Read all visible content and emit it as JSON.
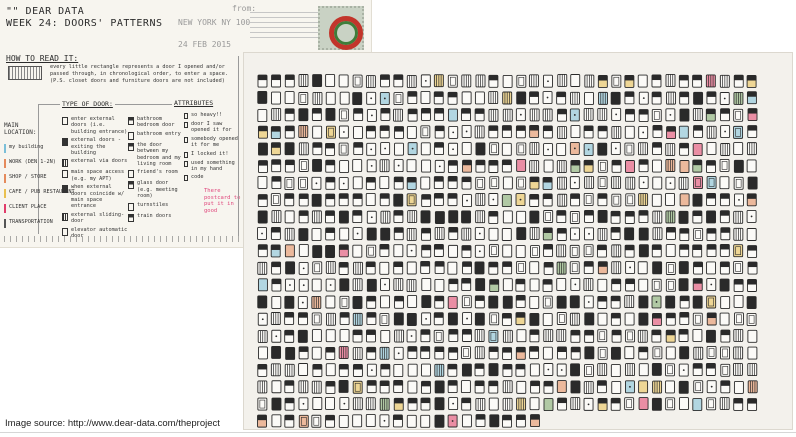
{
  "postcard": {
    "title_line1": "\"\" DEAR DATA",
    "title_line2": "WEEK 24: DOORS' PATTERNS",
    "from_label": "from:",
    "city": "NEW YORK NY 100",
    "date": "24 FEB 2015",
    "how_to_read": "HOW TO READ IT:",
    "intro_text": "every little rectangle represents a door I opened and/or passed through, in chronological order, to enter a space. (P.S. closet doors and furniture doors are not included)",
    "type_of_door": "TYPE OF DOOR:",
    "attributes": "ATTRIBUTES",
    "main_location": "MAIN LOCATION:",
    "locations": [
      {
        "label": "my building",
        "color": "#7bbfd8"
      },
      {
        "label": "WORK (DEN 1-2N)",
        "color": "#e58a5b"
      },
      {
        "label": "SHOP / STORE",
        "color": "#e58a5b"
      },
      {
        "label": "CAFE / PUB RESTAURANT",
        "color": "#e9c04f"
      },
      {
        "label": "CLIENT PLACE",
        "color": "#e13c6a"
      },
      {
        "label": "TRANSPORTATION",
        "color": "#555555"
      }
    ],
    "door_types": [
      "enter external doors (i.e. building entrance)",
      "external doors - exiting the building",
      "external via doors",
      "main space access (e.g. my APT)",
      "when external doors coincide w/ main space entrance",
      "external sliding-door",
      "elevator automatic door"
    ],
    "door_types_2": [
      "bathroom bedroom door",
      "bathroom entry",
      "the door between my bedroom and my living room",
      "friend's room",
      "glass door (e.g. meeting room)",
      "turnstiles",
      "train doors"
    ],
    "attribute_items": [
      "so heavy!!",
      "door I saw opened it for",
      "somebody opened it for me",
      "I locked it!",
      "used something in my hand",
      "code"
    ],
    "pink_note": "There postcard to put it in good"
  },
  "door_grid": {
    "rows": 21,
    "cols": 37,
    "last_row_count": 21,
    "accent_colors": [
      "#e9c04f",
      "#7bbfd8",
      "#e58a5b",
      "#e13c6a",
      "#7aa86a"
    ]
  },
  "caption": "Image source: http://www.dear-data.com/theproject"
}
